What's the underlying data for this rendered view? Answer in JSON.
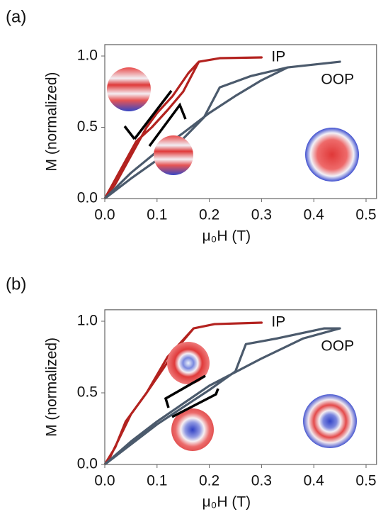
{
  "chart_data": [
    {
      "type": "line",
      "panel_label": "(a)",
      "ylabel": "M (normalized)",
      "xlabel": "μ₀H (T)",
      "xlim": [
        0,
        0.52
      ],
      "ylim": [
        0,
        1.08
      ],
      "xticks": [
        {
          "value": 0,
          "label": "0.0"
        },
        0.1,
        0.2,
        0.3,
        0.4,
        0.5
      ],
      "yticks": [
        {
          "value": 0,
          "label": "0.0"
        },
        0.5,
        {
          "value": 1,
          "label": "1.0"
        }
      ],
      "series": [
        {
          "name": "IP",
          "color": "#b3221f",
          "x": [
            0,
            0.02,
            0.05,
            0.08,
            0.1,
            0.13,
            0.16,
            0.18,
            0.22,
            0.3,
            0.22,
            0.18,
            0.15,
            0.12,
            0.09,
            0.06,
            0.03,
            0
          ],
          "values": [
            0,
            0.1,
            0.3,
            0.5,
            0.6,
            0.72,
            0.88,
            0.96,
            0.985,
            0.99,
            0.985,
            0.96,
            0.75,
            0.62,
            0.5,
            0.4,
            0.2,
            0
          ]
        },
        {
          "name": "OOP",
          "color": "#4b5a6c",
          "x": [
            0,
            0.05,
            0.1,
            0.15,
            0.19,
            0.22,
            0.28,
            0.35,
            0.45,
            0.35,
            0.3,
            0.25,
            0.2,
            0.15,
            0.1,
            0.05,
            0
          ],
          "values": [
            0,
            0.14,
            0.27,
            0.42,
            0.57,
            0.78,
            0.86,
            0.92,
            0.96,
            0.92,
            0.83,
            0.72,
            0.6,
            0.46,
            0.33,
            0.18,
            0
          ]
        }
      ]
    },
    {
      "type": "line",
      "panel_label": "(b)",
      "ylabel": "M (normalized)",
      "xlabel": "μ₀H (T)",
      "xlim": [
        0,
        0.52
      ],
      "ylim": [
        0,
        1.08
      ],
      "xticks": [
        {
          "value": 0,
          "label": "0.0"
        },
        0.1,
        0.2,
        0.3,
        0.4,
        0.5
      ],
      "yticks": [
        {
          "value": 0,
          "label": "0.0"
        },
        0.5,
        {
          "value": 1,
          "label": "1.0"
        }
      ],
      "series": [
        {
          "name": "IP",
          "color": "#b3221f",
          "x": [
            0,
            0.02,
            0.04,
            0.08,
            0.11,
            0.14,
            0.17,
            0.21,
            0.3,
            0.21,
            0.17,
            0.12,
            0.08,
            0.05,
            0.03,
            0.01,
            0
          ],
          "values": [
            0,
            0.12,
            0.3,
            0.5,
            0.66,
            0.82,
            0.95,
            0.98,
            0.99,
            0.98,
            0.95,
            0.75,
            0.5,
            0.35,
            0.2,
            0.05,
            0
          ]
        },
        {
          "name": "OOP",
          "color": "#4b5a6c",
          "x": [
            0,
            0.05,
            0.1,
            0.15,
            0.2,
            0.25,
            0.27,
            0.33,
            0.42,
            0.45,
            0.38,
            0.3,
            0.2,
            0.1,
            0.05,
            0
          ],
          "values": [
            0,
            0.14,
            0.28,
            0.4,
            0.52,
            0.65,
            0.84,
            0.88,
            0.95,
            0.95,
            0.88,
            0.74,
            0.55,
            0.3,
            0.16,
            0
          ]
        }
      ]
    }
  ]
}
